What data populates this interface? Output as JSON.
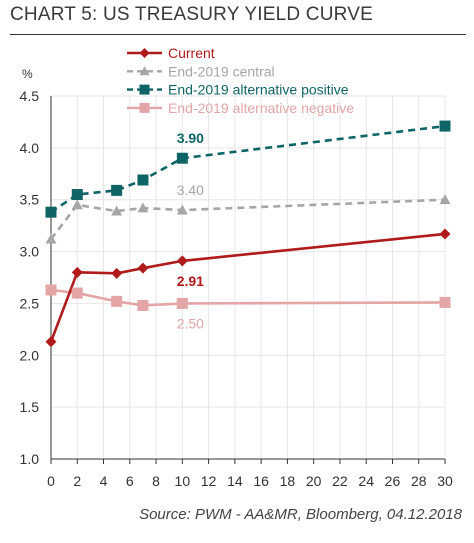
{
  "chart_data": {
    "type": "line",
    "title": "CHART 5: US TREASURY YIELD CURVE",
    "unit_label": "%",
    "xlabel": "",
    "ylabel": "",
    "xlim": [
      0,
      30
    ],
    "ylim": [
      1.0,
      4.5
    ],
    "x_ticks": [
      0,
      2,
      4,
      6,
      8,
      10,
      12,
      14,
      16,
      18,
      20,
      22,
      24,
      26,
      28,
      30
    ],
    "y_ticks": [
      "1.0",
      "1.5",
      "2.0",
      "2.5",
      "3.0",
      "3.5",
      "4.0",
      "4.5"
    ],
    "grid": true,
    "legend_position": "top-left",
    "series": [
      {
        "name": "Current",
        "color": "#b11a1a",
        "style": "solid",
        "marker": "diamond",
        "x": [
          0,
          2,
          5,
          7,
          10,
          30
        ],
        "y": [
          2.13,
          2.8,
          2.79,
          2.84,
          2.91,
          3.17
        ]
      },
      {
        "name": "End-2019 central",
        "color": "#a6a6a6",
        "style": "dashed",
        "marker": "triangle",
        "x": [
          0,
          2,
          5,
          7,
          10,
          30
        ],
        "y": [
          3.12,
          3.45,
          3.39,
          3.42,
          3.4,
          3.5
        ]
      },
      {
        "name": "End-2019 alternative positive",
        "color": "#0f6466",
        "style": "dashed",
        "marker": "square",
        "x": [
          0,
          2,
          5,
          7,
          10,
          30
        ],
        "y": [
          3.38,
          3.55,
          3.59,
          3.69,
          3.9,
          4.21
        ]
      },
      {
        "name": "End-2019 alternative negative",
        "color": "#e3a5a5",
        "style": "solid",
        "marker": "square",
        "x": [
          0,
          2,
          5,
          7,
          10,
          30
        ],
        "y": [
          2.63,
          2.6,
          2.52,
          2.48,
          2.5,
          2.51
        ]
      }
    ],
    "annotations": [
      {
        "text": "3.90",
        "series": 2,
        "x": 10,
        "y": 3.9,
        "color": "#0f6466",
        "bold": true,
        "place": "above"
      },
      {
        "text": "3.40",
        "series": 1,
        "x": 10,
        "y": 3.4,
        "color": "#a6a6a6",
        "bold": false,
        "place": "above"
      },
      {
        "text": "2.91",
        "series": 0,
        "x": 10,
        "y": 2.91,
        "color": "#b11a1a",
        "bold": true,
        "place": "below"
      },
      {
        "text": "2.50",
        "series": 3,
        "x": 10,
        "y": 2.5,
        "color": "#e3a5a5",
        "bold": false,
        "place": "below"
      }
    ],
    "source": "Source: PWM - AA&MR, Bloomberg, 04.12.2018"
  }
}
